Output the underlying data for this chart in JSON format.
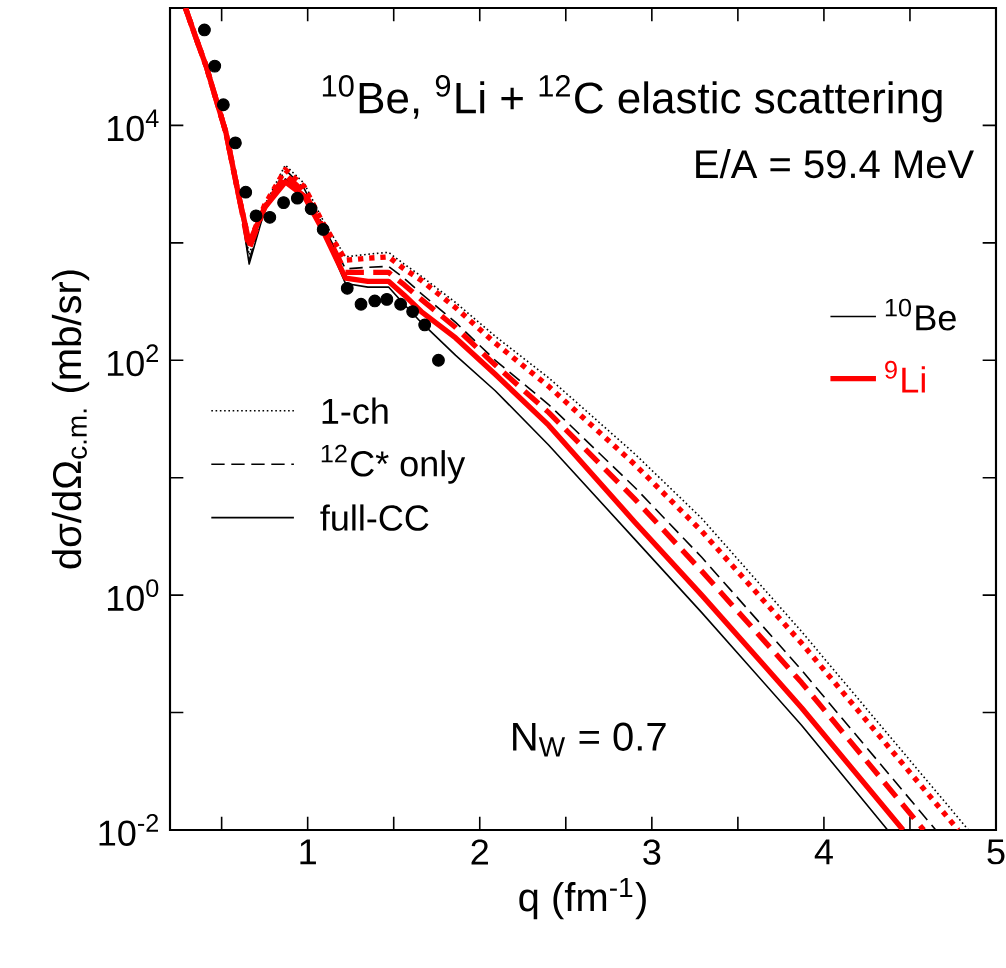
{
  "chart_data": {
    "type": "line",
    "title": "$^{10}$Be, $^{9}$Li + $^{12}$C elastic scattering",
    "xlabel": "q (fm$^{-1}$)",
    "ylabel": "dσ/dΩ$_{c.m.}$ (mb/sr)",
    "annotations": [
      "E/A = 59.4 MeV",
      "N$_{W}$ = 0.7",
      "1-ch",
      "$^{12}$C* only",
      "full-CC"
    ],
    "log": "y",
    "legend": "right",
    "marker": "none",
    "xlim": [
      0.2,
      5
    ],
    "ylim": [
      0.01,
      100000
    ],
    "xticks": [
      {
        "value": 0.5,
        "label": null
      },
      1,
      {
        "value": 1.5,
        "label": null
      },
      2,
      {
        "value": 2.5,
        "label": null
      },
      3,
      {
        "value": 3.5,
        "label": null
      },
      4,
      {
        "value": 4.5,
        "label": null
      },
      5
    ],
    "yticks": [
      {
        "value": 0.01,
        "label": "10$^{-2}$"
      },
      {
        "value": 0.1,
        "label": null
      },
      {
        "value": 1,
        "label": "10$^{0}$"
      },
      {
        "value": 10,
        "label": null
      },
      {
        "value": 100,
        "label": "10$^{2}$"
      },
      {
        "value": 1000,
        "label": null
      },
      {
        "value": 10000,
        "label": "10$^{4}$"
      }
    ],
    "series": [
      {
        "color": "#000000",
        "line_style": "dotted",
        "x": [
          0.29,
          0.35,
          0.41,
          0.525,
          0.6,
          0.66,
          0.75,
          0.87,
          0.98,
          1.085,
          1.22,
          1.35,
          1.47,
          1.56,
          1.66,
          1.86,
          2.09,
          2.4,
          2.9,
          3.29,
          3.87,
          4.84
        ],
        "values": [
          100000,
          56000,
          32000,
          8700,
          2500,
          790,
          2100,
          4600,
          3200,
          1600,
          760,
          800,
          830,
          660,
          520,
          310,
          160,
          71,
          16,
          4.5,
          0.49,
          0.01
        ]
      },
      {
        "color": "#000000",
        "line_style": "dashed",
        "x": [
          0.29,
          0.35,
          0.41,
          0.525,
          0.6,
          0.66,
          0.75,
          0.87,
          0.98,
          1.085,
          1.22,
          1.35,
          1.47,
          1.56,
          1.66,
          1.86,
          2.09,
          2.4,
          2.9,
          3.29,
          3.87,
          4.65
        ],
        "values": [
          100000,
          56000,
          32000,
          8700,
          2500,
          710,
          2000,
          4200,
          2900,
          1450,
          600,
          620,
          630,
          500,
          370,
          210,
          100,
          42,
          8.3,
          2.1,
          0.23,
          0.01
        ]
      },
      {
        "name": "$^{10}$Be",
        "color": "#000000",
        "line_style": "solid",
        "x": [
          0.29,
          0.35,
          0.41,
          0.525,
          0.6,
          0.66,
          0.75,
          0.87,
          0.98,
          1.085,
          1.22,
          1.35,
          1.47,
          1.56,
          1.66,
          1.86,
          2.09,
          2.4,
          2.9,
          3.29,
          3.87,
          4.37
        ],
        "values": [
          100000,
          56000,
          32000,
          8700,
          2500,
          660,
          1900,
          3500,
          2600,
          1300,
          450,
          420,
          420,
          300,
          210,
          110,
          55,
          19,
          3.0,
          0.71,
          0.078,
          0.01
        ]
      },
      {
        "color": "#ff0000",
        "line_style": "dotted",
        "x": [
          0.29,
          0.35,
          0.41,
          0.525,
          0.6,
          0.66,
          0.75,
          0.87,
          0.98,
          1.085,
          1.22,
          1.35,
          1.47,
          1.56,
          1.66,
          1.86,
          2.09,
          2.4,
          2.9,
          3.29,
          3.87,
          4.78
        ],
        "values": [
          100000,
          56000,
          32000,
          8700,
          2500,
          1000,
          2100,
          4200,
          3000,
          1500,
          710,
          740,
          760,
          600,
          480,
          280,
          140,
          60,
          13,
          3.5,
          0.39,
          0.01
        ]
      },
      {
        "color": "#ff0000",
        "line_style": "dashed",
        "x": [
          0.29,
          0.35,
          0.41,
          0.525,
          0.6,
          0.66,
          0.75,
          0.87,
          0.98,
          1.085,
          1.22,
          1.35,
          1.47,
          1.56,
          1.66,
          1.86,
          2.09,
          2.4,
          2.9,
          3.29,
          3.87,
          4.58
        ],
        "values": [
          100000,
          56000,
          32000,
          8700,
          2500,
          890,
          2000,
          3800,
          2700,
          1400,
          560,
          560,
          560,
          440,
          330,
          190,
          91,
          36,
          6.6,
          1.6,
          0.18,
          0.01
        ]
      },
      {
        "name": "$^{9}$Li",
        "color": "#ff0000",
        "line_style": "solid",
        "x": [
          0.29,
          0.35,
          0.41,
          0.525,
          0.6,
          0.66,
          0.75,
          0.87,
          0.98,
          1.085,
          1.22,
          1.35,
          1.47,
          1.56,
          1.66,
          1.86,
          2.09,
          2.4,
          2.9,
          3.29,
          3.87,
          4.46
        ],
        "values": [
          100000,
          56000,
          32000,
          8700,
          2500,
          1000,
          2000,
          3300,
          2500,
          1300,
          500,
          470,
          470,
          360,
          260,
          155,
          76,
          28,
          4.2,
          1.0,
          0.11,
          0.01
        ]
      },
      {
        "type": "scatter",
        "marker": "circle",
        "color": "#000000",
        "x": [
          0.4,
          0.46,
          0.51,
          0.58,
          0.64,
          0.7,
          0.78,
          0.86,
          0.94,
          1.02,
          1.09,
          1.23,
          1.31,
          1.39,
          1.46,
          1.54,
          1.61,
          1.68,
          1.76
        ],
        "values": [
          65000,
          32000,
          15000,
          7100,
          2700,
          1700,
          1650,
          2200,
          2400,
          1950,
          1300,
          410,
          300,
          320,
          330,
          300,
          260,
          200,
          100
        ]
      }
    ]
  }
}
